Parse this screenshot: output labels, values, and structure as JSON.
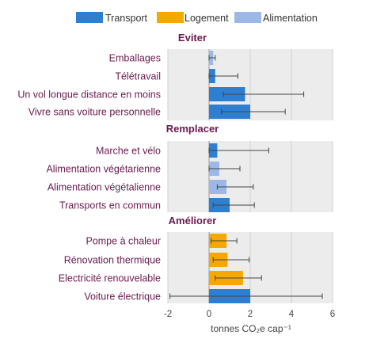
{
  "chart_data": {
    "type": "bar",
    "orientation": "horizontal",
    "xlabel": "tonnes CO₂e cap⁻¹",
    "xlim": [
      -2,
      6
    ],
    "xticks": [
      "-2",
      "0",
      "2",
      "4",
      "6"
    ],
    "grid": true,
    "legend": {
      "placement": "top",
      "entries": [
        {
          "name": "Transport",
          "color": "#2e7fd1"
        },
        {
          "name": "Logement",
          "color": "#f7a800"
        },
        {
          "name": "Alimentation",
          "color": "#9cb8e8"
        }
      ]
    },
    "label_color": "#6b1a4f",
    "panels": [
      {
        "title": "Eviter",
        "items": [
          {
            "label": "Emballages",
            "category": "Alimentation",
            "value": 0.2,
            "err_low": 0.0,
            "err_high": 0.3
          },
          {
            "label": "Télétravail",
            "category": "Transport",
            "value": 0.3,
            "err_low": 0.0,
            "err_high": 1.4
          },
          {
            "label": "Un vol longue distance en moins",
            "category": "Transport",
            "value": 1.75,
            "err_low": 0.7,
            "err_high": 4.6
          },
          {
            "label": "Vivre sans voiture personnelle",
            "category": "Transport",
            "value": 2.0,
            "err_low": 0.6,
            "err_high": 3.7
          }
        ]
      },
      {
        "title": "Remplacer",
        "items": [
          {
            "label": "Marche et vélo",
            "category": "Transport",
            "value": 0.4,
            "err_low": 0.0,
            "err_high": 2.9
          },
          {
            "label": "Alimentation végétarienne",
            "category": "Alimentation",
            "value": 0.5,
            "err_low": 0.0,
            "err_high": 1.5
          },
          {
            "label": "Alimentation végétalienne",
            "category": "Alimentation",
            "value": 0.85,
            "err_low": 0.4,
            "err_high": 2.15
          },
          {
            "label": "Transports en commun",
            "category": "Transport",
            "value": 1.0,
            "err_low": 0.2,
            "err_high": 2.2
          }
        ]
      },
      {
        "title": "Améliorer",
        "items": [
          {
            "label": "Pompe à chaleur",
            "category": "Logement",
            "value": 0.85,
            "err_low": 0.1,
            "err_high": 1.35
          },
          {
            "label": "Rénovation thermique",
            "category": "Logement",
            "value": 0.9,
            "err_low": 0.2,
            "err_high": 1.95
          },
          {
            "label": "Electricité renouvelable",
            "category": "Logement",
            "value": 1.65,
            "err_low": 0.3,
            "err_high": 2.55
          },
          {
            "label": "Voiture électrique",
            "category": "Transport",
            "value": 2.0,
            "err_low": -1.9,
            "err_high": 5.5
          }
        ]
      }
    ]
  }
}
